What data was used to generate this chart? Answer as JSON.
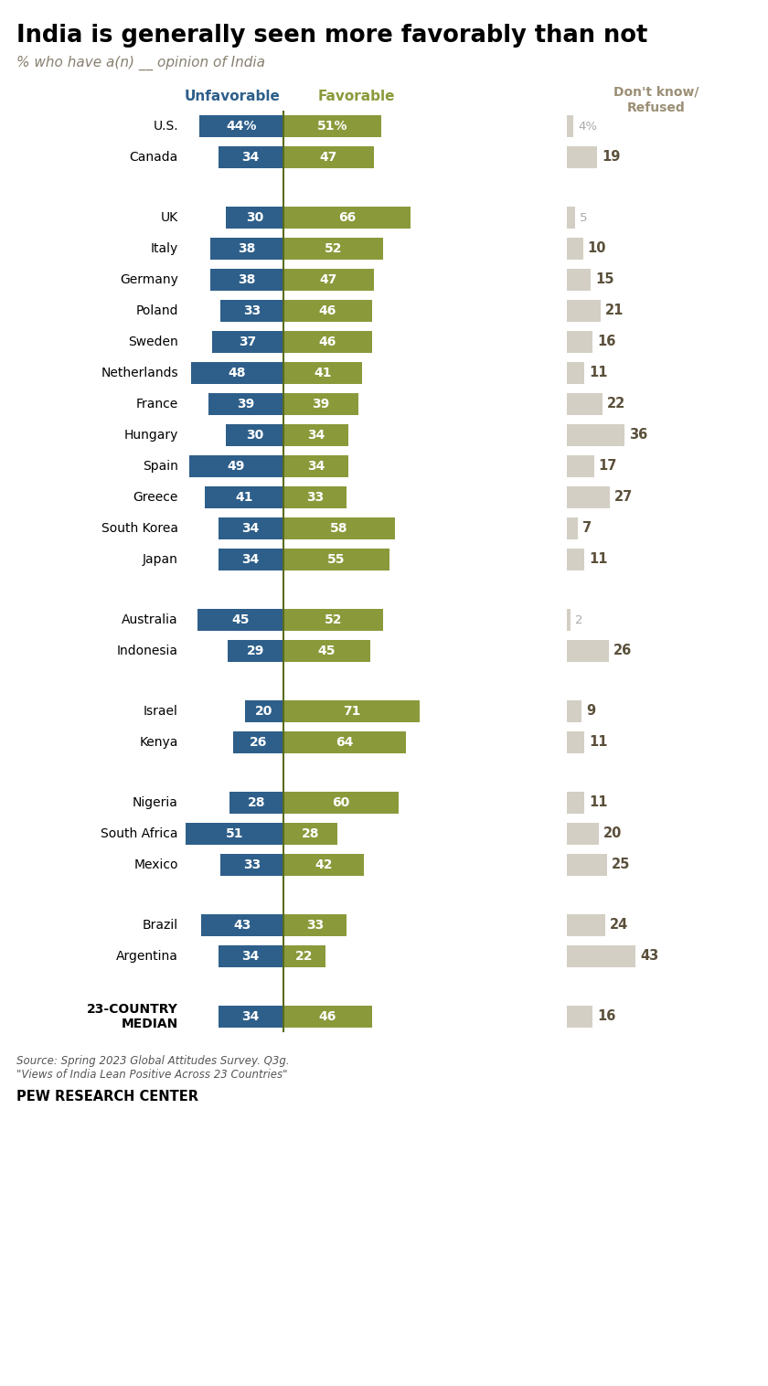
{
  "title": "India is generally seen more favorably than not",
  "subtitle": "% who have a(n) __ opinion of India",
  "categories": [
    "U.S.",
    "Canada",
    "UK",
    "Italy",
    "Germany",
    "Poland",
    "Sweden",
    "Netherlands",
    "France",
    "Hungary",
    "Spain",
    "Greece",
    "South Korea",
    "Japan",
    "Australia",
    "Indonesia",
    "Israel",
    "Kenya",
    "Nigeria",
    "South Africa",
    "Mexico",
    "Brazil",
    "Argentina",
    "23-COUNTRY\nMEDIAN"
  ],
  "unfavorable": [
    44,
    34,
    30,
    38,
    38,
    33,
    37,
    48,
    39,
    30,
    49,
    41,
    34,
    34,
    45,
    29,
    20,
    26,
    28,
    51,
    33,
    43,
    34,
    34
  ],
  "favorable": [
    51,
    47,
    66,
    52,
    47,
    46,
    46,
    41,
    39,
    34,
    34,
    33,
    58,
    55,
    52,
    45,
    71,
    64,
    60,
    28,
    42,
    33,
    22,
    46
  ],
  "dontknow": [
    4,
    19,
    5,
    10,
    15,
    21,
    16,
    11,
    22,
    36,
    17,
    27,
    7,
    11,
    2,
    26,
    9,
    11,
    11,
    20,
    25,
    24,
    43,
    16
  ],
  "unfav_color": "#2E5F8A",
  "fav_color": "#8A9A3B",
  "dk_color": "#D4CFC4",
  "unfav_label_color": "#2E5F8A",
  "fav_label_color": "#7A8B35",
  "dk_label_color": "#9B8F75",
  "source_text": "Source: Spring 2023 Global Attitudes Survey. Q3g.\n\"Views of India Lean Positive Across 23 Countries\"",
  "footer": "PEW RESEARCH CENTER",
  "background": "#FFFFFF",
  "separators_after": [
    1,
    13,
    15,
    17,
    20,
    22
  ]
}
